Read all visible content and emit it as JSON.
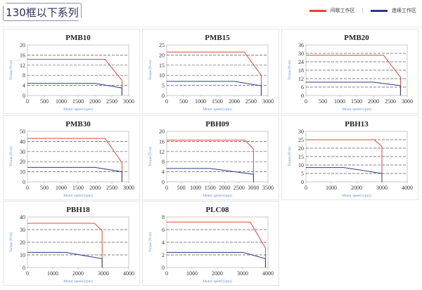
{
  "header": {
    "title": "130框以下系列",
    "legend": [
      {
        "label": "间歇工作区",
        "color": "#e8432e"
      },
      {
        "label": "连续工作区",
        "color": "#2b3a8c"
      }
    ]
  },
  "colors": {
    "intermittent": "#e8432e",
    "continuous": "#2b3a8c",
    "axis_label": "#5b8bd0"
  },
  "chart_data": [
    {
      "type": "line",
      "title": "PMB10",
      "xlabel": "Motor speed (rpm)",
      "ylabel": "Torque (N·m)",
      "xlim": [
        0,
        3000
      ],
      "ylim": [
        0,
        20
      ],
      "xticks": [
        0,
        500,
        1000,
        1500,
        2000,
        2500,
        3000
      ],
      "yticks": [
        0,
        4,
        8,
        12,
        16,
        20
      ],
      "grid": true,
      "series": [
        {
          "key": "intermittent",
          "points": [
            [
              0,
              14.3
            ],
            [
              2300,
              14.3
            ],
            [
              2800,
              6
            ],
            [
              2800,
              0
            ]
          ]
        },
        {
          "key": "continuous",
          "points": [
            [
              0,
              4.8
            ],
            [
              2000,
              4.8
            ],
            [
              2800,
              3
            ],
            [
              2800,
              0
            ]
          ]
        }
      ]
    },
    {
      "type": "line",
      "title": "PMB15",
      "xlabel": "Motor speed (rpm)",
      "ylabel": "Torque (N·m)",
      "xlim": [
        0,
        3000
      ],
      "ylim": [
        0,
        25
      ],
      "xticks": [
        0,
        500,
        1000,
        1500,
        2000,
        2500,
        3000
      ],
      "yticks": [
        0,
        5,
        10,
        15,
        20,
        25
      ],
      "grid": true,
      "series": [
        {
          "key": "intermittent",
          "points": [
            [
              0,
              21.5
            ],
            [
              2300,
              21.5
            ],
            [
              2800,
              10
            ],
            [
              2800,
              0
            ]
          ]
        },
        {
          "key": "continuous",
          "points": [
            [
              0,
              7
            ],
            [
              2000,
              7
            ],
            [
              2800,
              4.8
            ],
            [
              2800,
              0
            ]
          ]
        }
      ]
    },
    {
      "type": "line",
      "title": "PMB20",
      "xlabel": "Motor speed (rpm)",
      "ylabel": "Torque (N·m)",
      "xlim": [
        0,
        3000
      ],
      "ylim": [
        0,
        36
      ],
      "xticks": [
        0,
        500,
        1000,
        1500,
        2000,
        2500,
        3000
      ],
      "yticks": [
        0,
        6,
        12,
        18,
        24,
        30,
        36
      ],
      "grid": true,
      "series": [
        {
          "key": "intermittent",
          "points": [
            [
              0,
              28.6
            ],
            [
              2300,
              28.6
            ],
            [
              2800,
              13
            ],
            [
              2800,
              0
            ]
          ]
        },
        {
          "key": "continuous",
          "points": [
            [
              0,
              9.5
            ],
            [
              2000,
              9.5
            ],
            [
              2800,
              7
            ],
            [
              2800,
              0
            ]
          ]
        }
      ]
    },
    {
      "type": "line",
      "title": "PMB30",
      "xlabel": "Motor speed (rpm)",
      "ylabel": "Torque (N·m)",
      "xlim": [
        0,
        3000
      ],
      "ylim": [
        0,
        50
      ],
      "xticks": [
        0,
        500,
        1000,
        1500,
        2000,
        2500,
        3000
      ],
      "yticks": [
        0,
        10,
        20,
        30,
        40,
        50
      ],
      "grid": true,
      "series": [
        {
          "key": "intermittent",
          "points": [
            [
              0,
              43
            ],
            [
              2300,
              43
            ],
            [
              2800,
              19
            ],
            [
              2800,
              0
            ]
          ]
        },
        {
          "key": "continuous",
          "points": [
            [
              0,
              14.3
            ],
            [
              2000,
              14.3
            ],
            [
              2800,
              10
            ],
            [
              2800,
              0
            ]
          ]
        }
      ]
    },
    {
      "type": "line",
      "title": "PBH09",
      "xlabel": "Motor speed (rpm)",
      "ylabel": "Torque (N·m)",
      "xlim": [
        0,
        3500
      ],
      "ylim": [
        0,
        20
      ],
      "xticks": [
        0,
        500,
        1000,
        1500,
        2000,
        2500,
        3000,
        3500
      ],
      "yticks": [
        0,
        4,
        8,
        12,
        16,
        20
      ],
      "grid": true,
      "series": [
        {
          "key": "intermittent",
          "points": [
            [
              0,
              16.5
            ],
            [
              2700,
              16.5
            ],
            [
              3000,
              13
            ],
            [
              3000,
              0
            ]
          ]
        },
        {
          "key": "continuous",
          "points": [
            [
              0,
              5.3
            ],
            [
              1500,
              5.3
            ],
            [
              3000,
              3
            ],
            [
              3000,
              0
            ]
          ]
        }
      ]
    },
    {
      "type": "line",
      "title": "PBH13",
      "xlabel": "Motor speed (rpm)",
      "ylabel": "Torque (N·m)",
      "xlim": [
        0,
        4000
      ],
      "ylim": [
        0,
        30
      ],
      "xticks": [
        0,
        1000,
        2000,
        3000,
        4000
      ],
      "yticks": [
        0,
        5,
        10,
        15,
        20,
        25,
        30
      ],
      "grid": true,
      "series": [
        {
          "key": "intermittent",
          "points": [
            [
              0,
              25
            ],
            [
              2700,
              25
            ],
            [
              3000,
              21
            ],
            [
              3000,
              0
            ]
          ]
        },
        {
          "key": "continuous",
          "points": [
            [
              0,
              8.5
            ],
            [
              1500,
              8.5
            ],
            [
              3000,
              5
            ],
            [
              3000,
              0
            ]
          ]
        }
      ]
    },
    {
      "type": "line",
      "title": "PBH18",
      "xlabel": "Motor speed (rpm)",
      "ylabel": "Torque (N·m)",
      "xlim": [
        0,
        4000
      ],
      "ylim": [
        0,
        40
      ],
      "xticks": [
        0,
        1000,
        2000,
        3000,
        4000
      ],
      "yticks": [
        0,
        10,
        20,
        30,
        40
      ],
      "grid": true,
      "series": [
        {
          "key": "intermittent",
          "points": [
            [
              0,
              35
            ],
            [
              2650,
              35
            ],
            [
              2950,
              29
            ],
            [
              2950,
              0
            ]
          ]
        },
        {
          "key": "continuous",
          "points": [
            [
              0,
              12
            ],
            [
              1500,
              12
            ],
            [
              2950,
              7
            ],
            [
              2950,
              0
            ]
          ]
        }
      ]
    },
    {
      "type": "line",
      "title": "PLC08",
      "xlabel": "Motor speed (rpm)",
      "ylabel": "Torque (N·m)",
      "xlim": [
        0,
        4000
      ],
      "ylim": [
        0,
        8
      ],
      "xticks": [
        0,
        1000,
        2000,
        3000,
        4000
      ],
      "yticks": [
        0,
        2,
        4,
        6,
        8
      ],
      "grid": true,
      "series": [
        {
          "key": "intermittent",
          "points": [
            [
              0,
              7.2
            ],
            [
              3300,
              7.2
            ],
            [
              3900,
              3.1
            ],
            [
              3900,
              0
            ]
          ]
        },
        {
          "key": "continuous",
          "points": [
            [
              0,
              2.4
            ],
            [
              3000,
              2.4
            ],
            [
              3900,
              1.4
            ],
            [
              3900,
              0
            ]
          ]
        }
      ]
    }
  ]
}
